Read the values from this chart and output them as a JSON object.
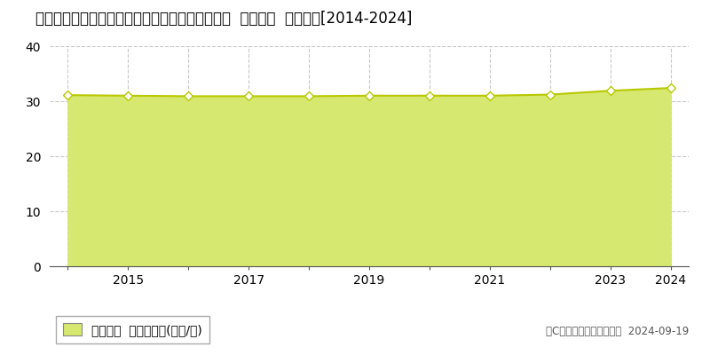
{
  "title": "愛知県西春日井郡豊山町大字豊場字若宮６３番４  基準地価  地価推移[2014-2024]",
  "years": [
    2014,
    2015,
    2016,
    2017,
    2018,
    2019,
    2020,
    2021,
    2022,
    2023,
    2024
  ],
  "values": [
    31.1,
    31.0,
    30.9,
    30.9,
    30.9,
    31.0,
    31.0,
    31.0,
    31.2,
    31.9,
    32.4
  ],
  "ylim": [
    0,
    40
  ],
  "yticks": [
    0,
    10,
    20,
    30,
    40
  ],
  "line_color": "#b8c800",
  "fill_color": "#d6e870",
  "fill_alpha": 1.0,
  "marker_facecolor": "white",
  "marker_edgecolor": "#b8c800",
  "grid_color": "#bbbbbb",
  "bg_color": "#ffffff",
  "plot_bg_color": "#ffffff",
  "legend_label": "基準地価  平均坪単価(万円/坪)",
  "copyright_text": "（C）土地価格ドットコム  2024-09-19",
  "title_fontsize": 12,
  "axis_fontsize": 10,
  "legend_fontsize": 10,
  "x_tick_labels": [
    2015,
    2017,
    2019,
    2021,
    2023,
    2024
  ]
}
